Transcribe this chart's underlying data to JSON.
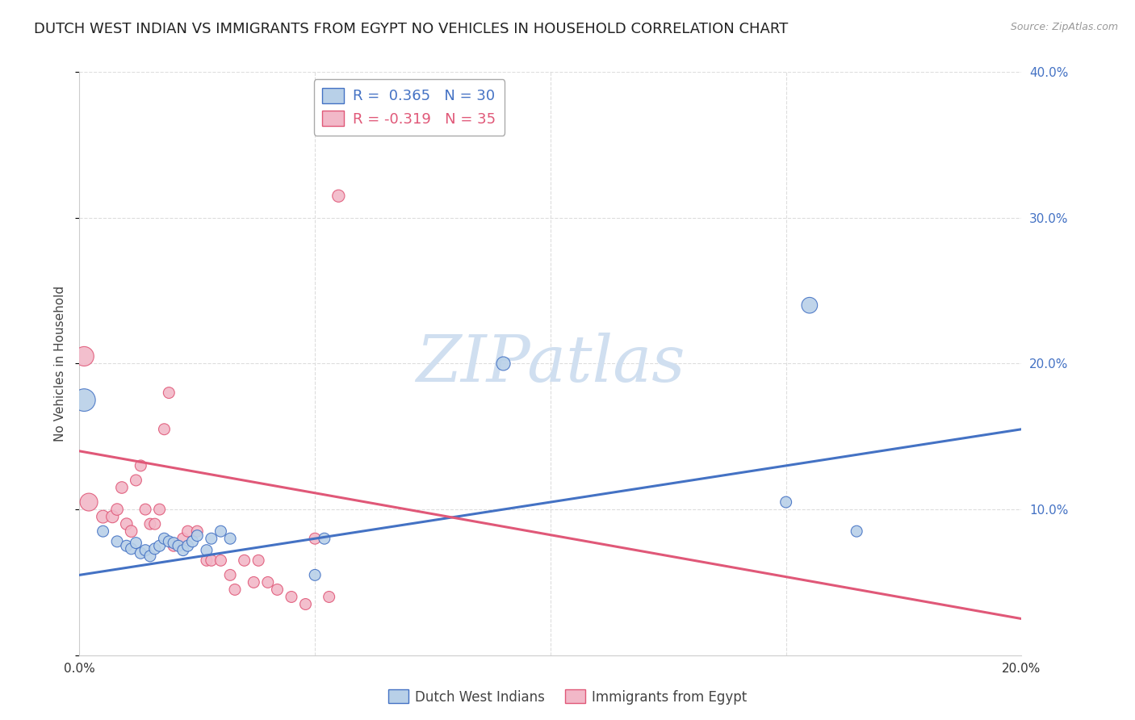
{
  "title": "DUTCH WEST INDIAN VS IMMIGRANTS FROM EGYPT NO VEHICLES IN HOUSEHOLD CORRELATION CHART",
  "source": "Source: ZipAtlas.com",
  "ylabel": "No Vehicles in Household",
  "xlim": [
    0.0,
    0.2
  ],
  "ylim": [
    0.0,
    0.4
  ],
  "blue_color": "#b8d0e8",
  "blue_line_color": "#4472c4",
  "pink_color": "#f2b8c8",
  "pink_line_color": "#e05878",
  "watermark": "ZIPatlas",
  "watermark_color": "#d0dff0",
  "blue_scatter_x": [
    0.001,
    0.005,
    0.008,
    0.01,
    0.011,
    0.012,
    0.013,
    0.014,
    0.015,
    0.016,
    0.017,
    0.018,
    0.019,
    0.02,
    0.021,
    0.022,
    0.023,
    0.024,
    0.025,
    0.027,
    0.028,
    0.03,
    0.032,
    0.05,
    0.052,
    0.09,
    0.15,
    0.155,
    0.165
  ],
  "blue_scatter_y": [
    0.175,
    0.085,
    0.078,
    0.075,
    0.073,
    0.077,
    0.07,
    0.072,
    0.068,
    0.073,
    0.075,
    0.08,
    0.078,
    0.077,
    0.075,
    0.072,
    0.075,
    0.078,
    0.082,
    0.072,
    0.08,
    0.085,
    0.08,
    0.055,
    0.08,
    0.2,
    0.105,
    0.24,
    0.085
  ],
  "blue_scatter_size": [
    400,
    100,
    100,
    100,
    100,
    100,
    100,
    100,
    100,
    100,
    100,
    100,
    100,
    100,
    100,
    100,
    100,
    100,
    100,
    100,
    100,
    100,
    100,
    100,
    100,
    150,
    100,
    200,
    100
  ],
  "pink_scatter_x": [
    0.001,
    0.002,
    0.005,
    0.007,
    0.008,
    0.009,
    0.01,
    0.011,
    0.012,
    0.013,
    0.014,
    0.015,
    0.016,
    0.017,
    0.018,
    0.019,
    0.02,
    0.022,
    0.023,
    0.025,
    0.027,
    0.028,
    0.03,
    0.032,
    0.033,
    0.035,
    0.037,
    0.038,
    0.04,
    0.042,
    0.045,
    0.048,
    0.05,
    0.053,
    0.055
  ],
  "pink_scatter_y": [
    0.205,
    0.105,
    0.095,
    0.095,
    0.1,
    0.115,
    0.09,
    0.085,
    0.12,
    0.13,
    0.1,
    0.09,
    0.09,
    0.1,
    0.155,
    0.18,
    0.075,
    0.08,
    0.085,
    0.085,
    0.065,
    0.065,
    0.065,
    0.055,
    0.045,
    0.065,
    0.05,
    0.065,
    0.05,
    0.045,
    0.04,
    0.035,
    0.08,
    0.04,
    0.315
  ],
  "pink_scatter_size": [
    300,
    250,
    130,
    120,
    110,
    110,
    110,
    110,
    100,
    100,
    100,
    100,
    100,
    100,
    100,
    100,
    100,
    100,
    100,
    100,
    100,
    100,
    100,
    100,
    100,
    100,
    100,
    100,
    100,
    100,
    100,
    100,
    100,
    100,
    120
  ],
  "blue_trend_x": [
    0.0,
    0.2
  ],
  "blue_trend_y": [
    0.055,
    0.155
  ],
  "pink_trend_x": [
    0.0,
    0.2
  ],
  "pink_trend_y": [
    0.14,
    0.025
  ],
  "background_color": "#ffffff",
  "grid_color": "#dddddd",
  "title_fontsize": 13,
  "axis_label_fontsize": 11,
  "tick_fontsize": 11
}
